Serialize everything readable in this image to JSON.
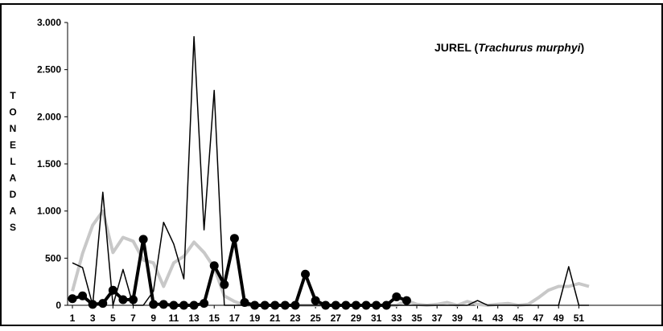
{
  "chart_data": {
    "type": "line",
    "title": {
      "prefix": "JUREL (",
      "species": "Trachurus murphyi",
      "suffix": ")"
    },
    "ylabel": "TONELADAS",
    "ylim": [
      0,
      3000
    ],
    "yticks": [
      {
        "value": 0,
        "label": "0"
      },
      {
        "value": 500,
        "label": "500"
      },
      {
        "value": 1000,
        "label": "1.000"
      },
      {
        "value": 1500,
        "label": "1.500"
      },
      {
        "value": 2000,
        "label": "2.000"
      },
      {
        "value": 2500,
        "label": "2.500"
      },
      {
        "value": 3000,
        "label": "3.000"
      }
    ],
    "xlim": [
      1,
      52
    ],
    "xticks": [
      1,
      3,
      5,
      7,
      9,
      11,
      13,
      15,
      17,
      19,
      21,
      23,
      25,
      27,
      29,
      31,
      33,
      35,
      37,
      39,
      41,
      43,
      45,
      47,
      49,
      51
    ],
    "grid": false,
    "legend": "none",
    "series": [
      {
        "style": "thin-black",
        "color": "#000000",
        "x": [
          1,
          2,
          3,
          4,
          5,
          6,
          7,
          8,
          9,
          10,
          11,
          12,
          13,
          14,
          15,
          16,
          17,
          18,
          19,
          20,
          21,
          22,
          23,
          24,
          25,
          26,
          27,
          28,
          29,
          30,
          31,
          32,
          33,
          34,
          35,
          36,
          37,
          38,
          39,
          40,
          41,
          42,
          43,
          44,
          45,
          46,
          47,
          48,
          49,
          50,
          51,
          52
        ],
        "values": [
          450,
          400,
          0,
          1200,
          0,
          380,
          0,
          0,
          150,
          880,
          650,
          280,
          2850,
          800,
          2280,
          0,
          0,
          0,
          0,
          0,
          0,
          0,
          0,
          0,
          0,
          0,
          0,
          0,
          0,
          0,
          0,
          0,
          0,
          0,
          0,
          0,
          0,
          0,
          0,
          0,
          50,
          0,
          0,
          0,
          0,
          0,
          0,
          0,
          0,
          410,
          0,
          0
        ]
      },
      {
        "style": "thick-black-markers",
        "color": "#000000",
        "x": [
          1,
          2,
          3,
          4,
          5,
          6,
          7,
          8,
          9,
          10,
          11,
          12,
          13,
          14,
          15,
          16,
          17,
          18,
          19,
          20,
          21,
          22,
          23,
          24,
          25,
          26,
          27,
          28,
          29,
          30,
          31,
          32,
          33,
          34
        ],
        "values": [
          70,
          100,
          10,
          20,
          160,
          60,
          60,
          700,
          10,
          10,
          0,
          0,
          0,
          20,
          420,
          220,
          710,
          30,
          0,
          0,
          0,
          0,
          0,
          330,
          50,
          0,
          0,
          0,
          0,
          0,
          0,
          0,
          90,
          50
        ]
      },
      {
        "style": "gray-thick",
        "color": "#c8c8c8",
        "x": [
          1,
          2,
          3,
          4,
          5,
          6,
          7,
          8,
          9,
          10,
          11,
          12,
          13,
          14,
          15,
          16,
          17,
          18,
          19,
          20,
          21,
          22,
          23,
          24,
          25,
          26,
          27,
          28,
          29,
          30,
          31,
          32,
          33,
          34,
          35,
          36,
          37,
          38,
          39,
          40,
          41,
          42,
          43,
          44,
          45,
          46,
          47,
          48,
          49,
          50,
          51,
          52
        ],
        "values": [
          150,
          550,
          850,
          1000,
          560,
          720,
          680,
          480,
          450,
          200,
          450,
          520,
          670,
          560,
          400,
          100,
          40,
          0,
          0,
          0,
          0,
          0,
          0,
          0,
          0,
          0,
          0,
          0,
          0,
          0,
          0,
          0,
          0,
          50,
          10,
          0,
          10,
          30,
          0,
          40,
          10,
          0,
          10,
          20,
          0,
          10,
          80,
          160,
          200,
          200,
          230,
          200
        ]
      }
    ]
  }
}
